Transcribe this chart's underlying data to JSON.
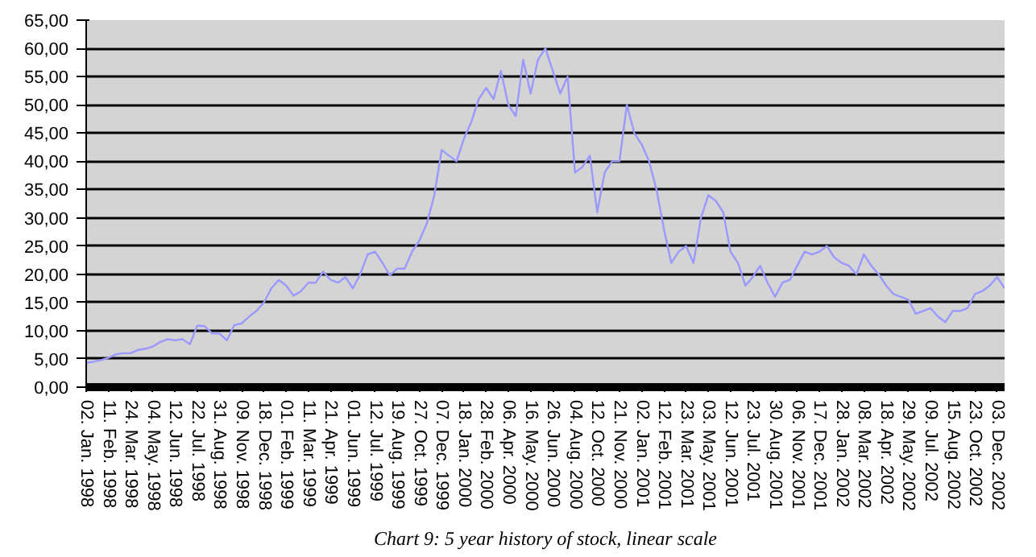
{
  "chart_data": {
    "type": "line",
    "annotations": [
      "Chart 9: 5 year history of stock, linear scale"
    ],
    "categories": [
      "02. Jan. 1998",
      null,
      null,
      "11. Feb. 1998",
      null,
      null,
      "24. Mar. 1998",
      null,
      null,
      "04. May. 1998",
      null,
      null,
      "12. Jun. 1998",
      null,
      null,
      "22. Jul. 1998",
      null,
      null,
      "31. Aug. 1998",
      null,
      null,
      "09. Nov. 1998",
      null,
      null,
      "18. Dec. 1998",
      null,
      null,
      "01. Feb. 1999",
      null,
      null,
      "11. Mar. 1999",
      null,
      null,
      "21. Apr. 1999",
      null,
      null,
      "01. Jun. 1999",
      null,
      null,
      "12. Jul. 1999",
      null,
      null,
      "19. Aug. 1999",
      null,
      null,
      "27. Oct. 1999",
      null,
      null,
      "07. Dec. 1999",
      null,
      null,
      "18. Jan. 2000",
      null,
      null,
      "28. Feb. 2000",
      null,
      null,
      "06. Apr. 2000",
      null,
      null,
      "16. May. 2000",
      null,
      null,
      "26. Jun. 2000",
      null,
      null,
      "04. Aug. 2000",
      null,
      null,
      "12. Oct. 2000",
      null,
      null,
      "21. Nov. 2000",
      null,
      null,
      "02. Jan. 2001",
      null,
      null,
      "12. Feb. 2001",
      null,
      null,
      "23. Mar. 2001",
      null,
      null,
      "03. May. 2001",
      null,
      null,
      "12. Jun. 2001",
      null,
      null,
      "23. Jul. 2001",
      null,
      null,
      "30. Aug. 2001",
      null,
      null,
      "06. Nov. 2001",
      null,
      null,
      "17. Dec. 2001",
      null,
      null,
      "28. Jan. 2002",
      null,
      null,
      "08. Mar. 2002",
      null,
      null,
      "18. Apr. 2002",
      null,
      null,
      "29. May. 2002",
      null,
      null,
      "09. Jul. 2002",
      null,
      null,
      "15. Aug. 2002",
      null,
      null,
      "23. Oct. 2002",
      null,
      null,
      "03. Dec. 2002",
      null
    ],
    "series": [
      {
        "color": "#9999ff",
        "values": [
          4.3,
          4.5,
          4.8,
          5.2,
          5.8,
          6.0,
          6.0,
          6.6,
          6.8,
          7.2,
          8.0,
          8.5,
          8.3,
          8.5,
          7.6,
          10.9,
          10.8,
          9.5,
          9.5,
          8.3,
          11.0,
          11.3,
          12.5,
          13.5,
          15.0,
          17.5,
          19.0,
          18.0,
          16.2,
          17.0,
          18.5,
          18.5,
          20.5,
          19.0,
          18.5,
          19.5,
          17.5,
          20.0,
          23.5,
          24.0,
          22.0,
          19.8,
          21.0,
          21.0,
          24.0,
          26.0,
          29.0,
          34.0,
          42.0,
          41.0,
          40.0,
          44.0,
          47.0,
          51.0,
          53.0,
          51.0,
          56.0,
          50.0,
          48.0,
          58.0,
          52.0,
          58.0,
          60.0,
          56.0,
          52.0,
          55.0,
          38.0,
          39.0,
          41.0,
          31.0,
          38.0,
          40.0,
          40.0,
          50.0,
          45.0,
          43.0,
          40.0,
          35.0,
          28.0,
          22.0,
          24.0,
          25.0,
          22.0,
          30.0,
          34.0,
          33.0,
          31.0,
          24.0,
          22.0,
          18.0,
          19.5,
          21.5,
          18.5,
          16.0,
          18.5,
          19.0,
          21.5,
          24.0,
          23.5,
          24.0,
          25.0,
          23.0,
          22.0,
          21.5,
          20.0,
          23.5,
          21.5,
          20.0,
          18.0,
          16.5,
          16.0,
          15.5,
          13.0,
          13.5,
          14.0,
          12.5,
          11.5,
          13.5,
          13.5,
          14.0,
          16.5,
          17.0,
          18.0,
          19.5,
          17.5
        ]
      }
    ],
    "ylim": [
      0,
      65
    ],
    "yticks": [
      {
        "value": 0,
        "label": "0,00"
      },
      {
        "value": 5,
        "label": "5,00"
      },
      {
        "value": 10,
        "label": "10,00"
      },
      {
        "value": 15,
        "label": "15,00"
      },
      {
        "value": 20,
        "label": "20,00"
      },
      {
        "value": 25,
        "label": "25,00"
      },
      {
        "value": 30,
        "label": "30,00"
      },
      {
        "value": 35,
        "label": "35,00"
      },
      {
        "value": 40,
        "label": "40,00"
      },
      {
        "value": 45,
        "label": "45,00"
      },
      {
        "value": 50,
        "label": "50,00"
      },
      {
        "value": 55,
        "label": "55,00"
      },
      {
        "value": 60,
        "label": "60,00"
      },
      {
        "value": 65,
        "label": "65,00"
      }
    ],
    "grid": "y",
    "marker": "none",
    "line_style": "solid"
  }
}
